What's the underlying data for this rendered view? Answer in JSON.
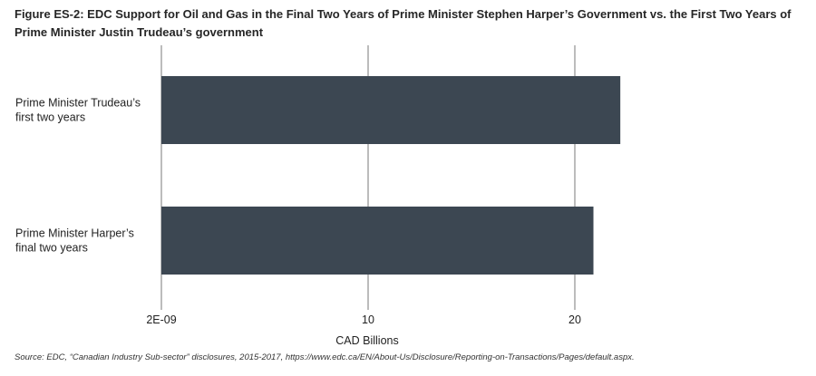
{
  "chart_data": {
    "type": "bar",
    "orientation": "horizontal",
    "title": "Figure ES-2: EDC Support for Oil and Gas in the Final Two Years of Prime Minister Stephen Harper’s Government vs. the First Two Years of Prime Minister Justin Trudeau’s government",
    "categories": [
      [
        "Prime Minister Trudeau’s",
        "first two years"
      ],
      [
        "Prime Minister Harper’s",
        "final two years"
      ]
    ],
    "values": [
      22.2,
      20.9
    ],
    "xlabel": "CAD Billions",
    "ylabel": "",
    "xlim": [
      0,
      30
    ],
    "xticks": [
      0,
      10,
      20
    ],
    "xtick_labels": [
      "2E-09",
      "10",
      "20"
    ],
    "grid": "vertical",
    "legend": "none",
    "bar_color": "#3c4752"
  },
  "source": "Source: EDC, “Canadian Industry Sub-sector” disclosures, 2015-2017, https://www.edc.ca/EN/About-Us/Disclosure/Reporting-on-Transactions/Pages/default.aspx."
}
